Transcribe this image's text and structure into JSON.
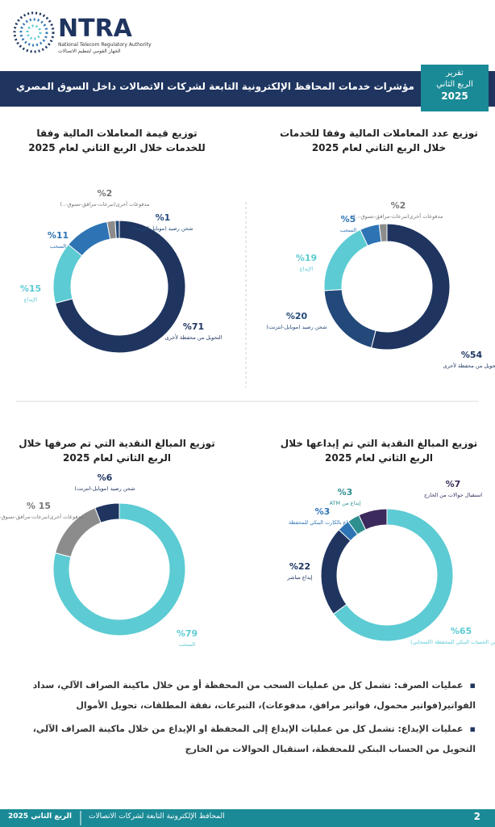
{
  "header": {
    "logo": "NTRA",
    "org_en": "National Telecom Regulatory Authority",
    "org_ar": "الجهاز القومي لتنظيم الاتصالات",
    "title": "مؤشرات خدمات المحافظ الإلكترونية التابعة لشركات الاتصالات داخل السوق المصري",
    "badge_line1": "تقرير",
    "badge_line2": "الربع الثاني",
    "badge_year": "2025"
  },
  "chart_data": [
    {
      "type": "pie",
      "title": "توزيع عدد المعاملات المالية وفقا للخدمات خلال الربع الثاني لعام 2025",
      "categories": [
        "التحويل من محفظة لأخرى",
        "شحن رصيد (موبايل-انترنت)",
        "الإيداع",
        "السحب",
        "مدفوعات أخرى(تبرعات-مرافق-تسوق-..)"
      ],
      "values": [
        54,
        20,
        19,
        5,
        2
      ],
      "value_labels": [
        "%54",
        "%20",
        "%19",
        "%5",
        "%2"
      ],
      "colors": [
        "#1f3560",
        "#22497a",
        "#5ccbd3",
        "#2e74b5",
        "#8c8c8c"
      ]
    },
    {
      "type": "pie",
      "title": "توزيع قيمة المعاملات المالية وفقا للخدمات خلال الربع الثاني لعام 2025",
      "categories": [
        "التحويل من محفظة لأخرى",
        "الإيداع",
        "السحب",
        "مدفوعات أخرى(تبرعات-مرافق-تسوق-..)",
        "شحن رصيد (موبايل-انترنت)"
      ],
      "values": [
        71,
        15,
        11,
        2,
        1
      ],
      "value_labels": [
        "%71",
        "%15",
        "%11",
        "%2",
        "%1"
      ],
      "colors": [
        "#1f3560",
        "#5ccbd3",
        "#2e74b5",
        "#8c8c8c",
        "#22497a"
      ]
    },
    {
      "type": "pie",
      "title": "توزيع المبالغ النقدية التي تم إيداعها خلال الربع الثاني لعام 2025",
      "categories": [
        "الإيداع من الحساب البنكي للمحفظة (السحابي)",
        "إيداع مباشر",
        "الإيداع بالكارت البنكي للمحفظة",
        "إيداع من ATM",
        "استقبال حوالات من الخارج"
      ],
      "values": [
        65,
        22,
        3,
        3,
        7
      ],
      "value_labels": [
        "%65",
        "%22",
        "%3",
        "%3",
        "%7"
      ],
      "colors": [
        "#5ccbd3",
        "#1f3560",
        "#2e74b5",
        "#2f8f8f",
        "#3d2a5c"
      ]
    },
    {
      "type": "pie",
      "title": "توزيع المبالغ النقدية التي تم صرفها خلال الربع الثاني لعام 2025",
      "categories": [
        "السحب",
        "مدفوعات أخرى(تبرعات-مرافق-تسوق-..)",
        "شحن رصيد (موبايل-انترنت)"
      ],
      "values": [
        79,
        15,
        6
      ],
      "value_labels": [
        "%79",
        "% 15",
        "%6"
      ],
      "colors": [
        "#5ccbd3",
        "#8c8c8c",
        "#1f3560"
      ]
    }
  ],
  "notes": [
    "عمليات الصرف: تشمل كل من عمليات السحب من المحفظة أو من خلال ماكينة الصراف الآلي، سداد الفواتير(فواتير محمول، فواتير مرافق، مدفوعات)، التبرعات، نفقة المطلقات، تحويل الأموال",
    "عمليات الإيداع: تشمل كل من عمليات الإيداع إلى المحفظة او الإيداع من خلال ماكينة الصراف الآلي، التحويل من الحساب البنكي للمحفظة، استقبال الحوالات من الخارج"
  ],
  "footer": {
    "period": "الربع الثاني 2025",
    "section": "المحافظ الإلكترونية التابعة لشركات الاتصالات",
    "page": "2"
  }
}
